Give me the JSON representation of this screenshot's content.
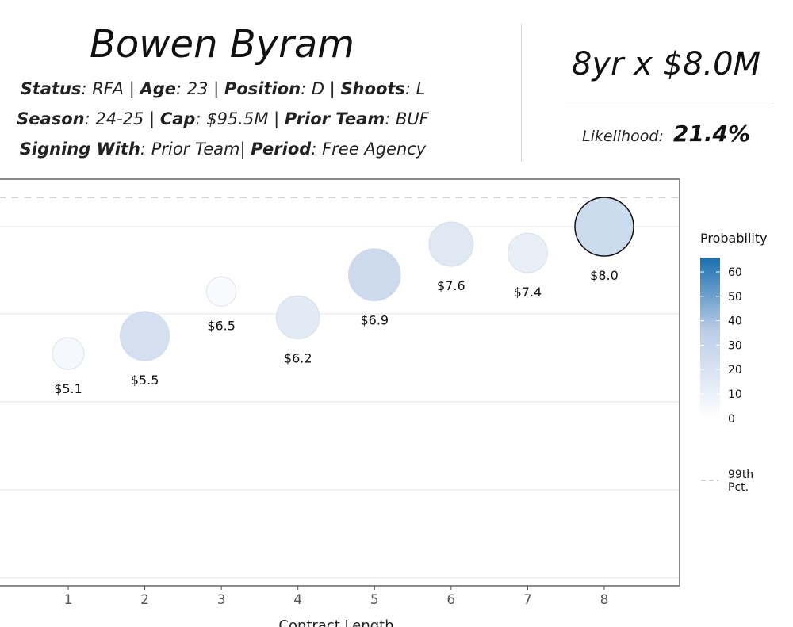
{
  "header": {
    "player_name": "Bowen Byram",
    "status_label": "Status",
    "status_value": "RFA",
    "age_label": "Age",
    "age_value": "23",
    "position_label": "Position",
    "position_value": "D",
    "shoots_label": "Shoots",
    "shoots_value": "L",
    "season_label": "Season",
    "season_value": "24-25",
    "cap_label": "Cap",
    "cap_value": "$95.5M",
    "prior_team_label": "Prior Team",
    "prior_team_value": "BUF",
    "signing_label": "Signing With",
    "signing_value": "Prior Team",
    "period_label": "Period",
    "period_value": "Free Agency"
  },
  "summary": {
    "contract": "8yr x $8.0M",
    "likelihood_label": "Likelihood:",
    "likelihood_value": "21.4%"
  },
  "chart_data": {
    "type": "scatter",
    "xlabel": "Contract Length",
    "x_ticks": [
      "1",
      "2",
      "3",
      "4",
      "5",
      "6",
      "7",
      "8"
    ],
    "xlim": [
      0.1,
      8.98
    ],
    "points": [
      {
        "x": 1,
        "y": 5.1,
        "label": "$5.1",
        "probability": 4
      },
      {
        "x": 2,
        "y": 5.5,
        "label": "$5.5",
        "probability": 18
      },
      {
        "x": 3,
        "y": 6.5,
        "label": "$6.5",
        "probability": 3
      },
      {
        "x": 4,
        "y": 6.2,
        "label": "$6.2",
        "probability": 12
      },
      {
        "x": 5,
        "y": 6.9,
        "label": "$6.9",
        "probability": 21
      },
      {
        "x": 6,
        "y": 7.6,
        "label": "$7.6",
        "probability": 13
      },
      {
        "x": 7,
        "y": 7.4,
        "label": "$7.4",
        "probability": 9
      },
      {
        "x": 8,
        "y": 8.0,
        "label": "$8.0",
        "probability": 21.4,
        "selected": true
      }
    ],
    "reference_line": {
      "label_line1": "99th",
      "label_line2": "Pct.",
      "style": "dashed"
    },
    "legend": {
      "title": "Probability",
      "ticks": [
        "60",
        "50",
        "40",
        "30",
        "20",
        "10",
        "0"
      ],
      "color_low": "#ffffff",
      "color_high": "#1a6fb0"
    },
    "grid": true
  }
}
